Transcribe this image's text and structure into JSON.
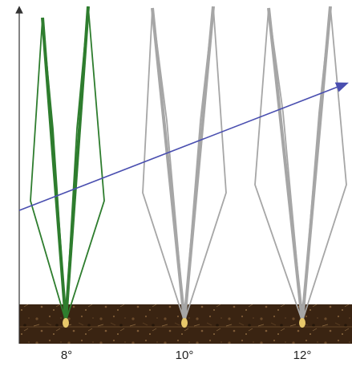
{
  "plants": [
    {
      "angle_label": "8°",
      "color": "#2e7d2e"
    },
    {
      "angle_label": "10°",
      "color": "#a6a6a6"
    },
    {
      "angle_label": "12°",
      "color": "#a6a6a6"
    }
  ],
  "colors": {
    "soil": "#3a2412",
    "soil_dark": "#24160a",
    "soil_light": "#6b4a2a",
    "seed": "#e8c86a",
    "axis": "#333333",
    "trend_arrow": "#4a4fb0"
  }
}
